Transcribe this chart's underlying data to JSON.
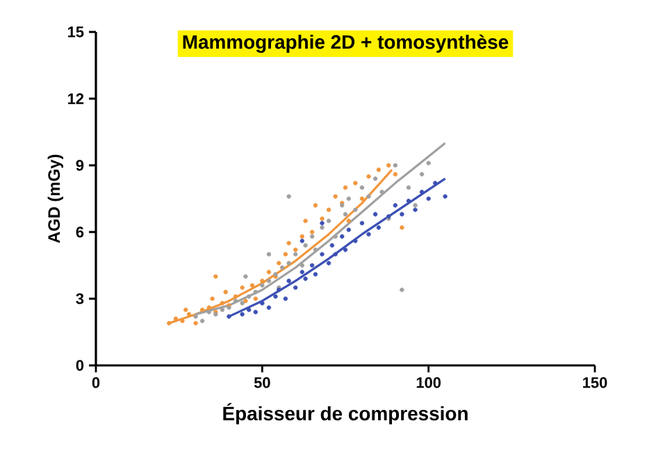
{
  "chart_data": {
    "type": "scatter",
    "title": "Mammographie 2D + tomosynthèse",
    "xlabel": "Épaisseur de compression",
    "ylabel": "AGD (mGy)",
    "xlim": [
      0,
      150
    ],
    "xticks": [
      0,
      50,
      100,
      150
    ],
    "ylim": [
      0,
      15
    ],
    "yticks": [
      0,
      3,
      6,
      9,
      12,
      15
    ],
    "grid": false,
    "series": [
      {
        "marker": "circle",
        "color": "#f0963c",
        "x": [
          22,
          24,
          26,
          28,
          30,
          32,
          34,
          35,
          36,
          38,
          39,
          40,
          42,
          44,
          45,
          47,
          48,
          50,
          52,
          54,
          55,
          57,
          58,
          60,
          62,
          63,
          65,
          66,
          68,
          70,
          72,
          74,
          75,
          76,
          78,
          80,
          82,
          85,
          88,
          90,
          92,
          36,
          27
        ],
        "values": [
          1.9,
          2.1,
          2.0,
          2.3,
          1.9,
          2.5,
          2.6,
          3.0,
          2.4,
          2.8,
          3.3,
          2.7,
          3.1,
          3.5,
          2.9,
          3.6,
          3.0,
          3.8,
          4.2,
          4.0,
          4.6,
          5.0,
          5.5,
          5.2,
          5.8,
          6.5,
          6.0,
          7.2,
          6.6,
          7.0,
          7.6,
          7.3,
          8.0,
          6.5,
          8.2,
          7.5,
          8.5,
          8.8,
          9.0,
          8.6,
          6.2,
          4.0,
          2.5
        ]
      },
      {
        "marker": "circle",
        "color": "#a0a0a0",
        "x": [
          30,
          32,
          34,
          36,
          38,
          40,
          42,
          44,
          46,
          48,
          50,
          52,
          54,
          55,
          56,
          58,
          60,
          62,
          63,
          65,
          66,
          68,
          70,
          72,
          74,
          75,
          76,
          78,
          80,
          82,
          84,
          86,
          88,
          90,
          92,
          94,
          96,
          98,
          100,
          58,
          52,
          45
        ],
        "values": [
          2.2,
          2.0,
          2.4,
          2.3,
          2.5,
          2.6,
          2.9,
          2.8,
          3.1,
          3.3,
          3.6,
          3.8,
          4.1,
          3.5,
          4.4,
          4.6,
          5.0,
          4.5,
          5.4,
          5.8,
          5.2,
          6.2,
          6.5,
          5.8,
          7.2,
          6.8,
          7.5,
          7.0,
          8.0,
          7.6,
          8.4,
          7.8,
          6.6,
          9.0,
          3.4,
          8.0,
          7.2,
          8.6,
          9.1,
          7.6,
          5.0,
          4.0
        ]
      },
      {
        "marker": "circle",
        "color": "#3c50b4",
        "x": [
          40,
          44,
          46,
          48,
          50,
          52,
          54,
          55,
          57,
          58,
          60,
          62,
          63,
          65,
          66,
          68,
          70,
          71,
          72,
          74,
          75,
          76,
          78,
          80,
          82,
          84,
          85,
          88,
          90,
          92,
          94,
          96,
          98,
          100,
          102,
          105,
          68,
          62
        ],
        "values": [
          2.2,
          2.3,
          2.5,
          2.4,
          2.8,
          2.6,
          3.1,
          3.4,
          3.0,
          3.8,
          3.5,
          4.2,
          3.9,
          4.5,
          4.1,
          5.0,
          4.6,
          5.4,
          5.0,
          5.8,
          5.2,
          6.1,
          5.6,
          6.4,
          5.9,
          6.8,
          6.2,
          6.7,
          7.2,
          6.8,
          7.4,
          7.0,
          7.8,
          7.5,
          8.2,
          7.6,
          6.4,
          5.6
        ]
      },
      {
        "type": "line",
        "marker": "none",
        "color": "#f0963c",
        "x": [
          22,
          30,
          40,
          50,
          60,
          70,
          80,
          89
        ],
        "values": [
          1.9,
          2.3,
          2.9,
          3.7,
          4.7,
          5.9,
          7.3,
          8.8
        ]
      },
      {
        "type": "line",
        "marker": "none",
        "color": "#a0a0a0",
        "x": [
          30,
          40,
          50,
          60,
          70,
          80,
          90,
          100,
          105
        ],
        "values": [
          2.3,
          2.7,
          3.4,
          4.4,
          5.6,
          6.9,
          8.2,
          9.4,
          10.0
        ]
      },
      {
        "type": "line",
        "marker": "none",
        "color": "#3c50b4",
        "x": [
          40,
          50,
          60,
          70,
          80,
          90,
          100,
          105
        ],
        "values": [
          2.2,
          2.9,
          3.8,
          4.8,
          5.9,
          6.9,
          7.9,
          8.4
        ]
      }
    ]
  }
}
